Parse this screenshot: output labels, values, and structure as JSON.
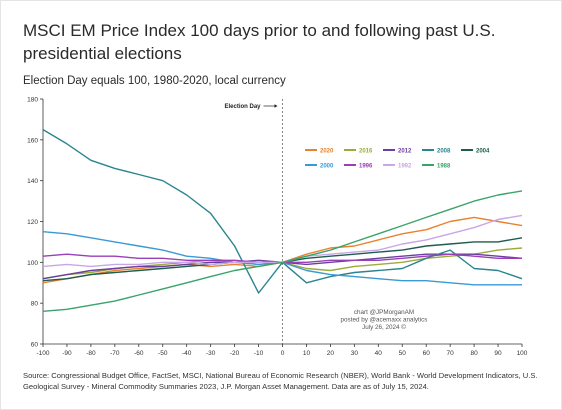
{
  "title": "MSCI EM Price Index 100 days prior to and following past U.S. presidential elections",
  "subtitle": "Election Day equals 100, 1980-2020, local currency",
  "source": "Source: Congressional Budget Office, FactSet, MSCI, National Bureau of Economic Research (NBER), World Bank - World Development Indicators, U.S. Geological Survey - Mineral Commodity Summaries 2023, J.P. Morgan Asset Management. Data are as of July 15, 2024.",
  "annotation": {
    "election_day": "Election Day",
    "credit_lines": [
      "chart @JPMorganAM",
      "posted by @acemaxx analytics",
      "July 26, 2024 ©"
    ]
  },
  "chart_data": {
    "type": "line",
    "title": "MSCI EM Price Index 100 days prior to and following past U.S. presidential elections",
    "subtitle": "Election Day equals 100, 1980-2020, local currency",
    "xlabel": "",
    "ylabel": "",
    "xlim": [
      -100,
      100
    ],
    "ylim": [
      60,
      180
    ],
    "x_ticks": [
      -100,
      -90,
      -80,
      -70,
      -60,
      -50,
      -40,
      -30,
      -20,
      -10,
      0,
      10,
      20,
      30,
      40,
      50,
      60,
      70,
      80,
      90,
      100
    ],
    "y_ticks": [
      60,
      80,
      100,
      120,
      140,
      160,
      180
    ],
    "grid": false,
    "legend_position": "top-right",
    "series": [
      {
        "name": "2020",
        "color": "#e8822e",
        "x": [
          -100,
          -90,
          -80,
          -70,
          -60,
          -50,
          -40,
          -30,
          -20,
          -10,
          0,
          10,
          20,
          30,
          40,
          50,
          60,
          70,
          80,
          90,
          100
        ],
        "values": [
          90,
          92,
          94,
          96,
          97,
          98,
          99,
          98,
          99,
          98,
          100,
          104,
          107,
          108,
          111,
          114,
          116,
          120,
          122,
          120,
          118
        ]
      },
      {
        "name": "2016",
        "color": "#9aac3c",
        "x": [
          -100,
          -90,
          -80,
          -70,
          -60,
          -50,
          -40,
          -30,
          -20,
          -10,
          0,
          10,
          20,
          30,
          40,
          50,
          60,
          70,
          80,
          90,
          100
        ],
        "values": [
          92,
          94,
          95,
          97,
          98,
          99,
          100,
          101,
          100,
          99,
          100,
          97,
          96,
          98,
          99,
          100,
          102,
          103,
          104,
          106,
          107
        ]
      },
      {
        "name": "2012",
        "color": "#6a3fa0",
        "x": [
          -100,
          -90,
          -80,
          -70,
          -60,
          -50,
          -40,
          -30,
          -20,
          -10,
          0,
          10,
          20,
          30,
          40,
          50,
          60,
          70,
          80,
          90,
          100
        ],
        "values": [
          92,
          94,
          96,
          97,
          98,
          98,
          99,
          100,
          100,
          101,
          100,
          99,
          100,
          101,
          102,
          103,
          104,
          104,
          104,
          103,
          102
        ]
      },
      {
        "name": "2008",
        "color": "#2b8590",
        "x": [
          -100,
          -90,
          -80,
          -70,
          -60,
          -50,
          -40,
          -30,
          -20,
          -10,
          0,
          10,
          20,
          30,
          40,
          50,
          60,
          70,
          80,
          90,
          100
        ],
        "values": [
          165,
          158,
          150,
          146,
          143,
          140,
          133,
          124,
          108,
          85,
          100,
          90,
          93,
          95,
          96,
          97,
          102,
          106,
          97,
          96,
          92
        ]
      },
      {
        "name": "2004",
        "color": "#1e5c4e",
        "x": [
          -100,
          -90,
          -80,
          -70,
          -60,
          -50,
          -40,
          -30,
          -20,
          -10,
          0,
          10,
          20,
          30,
          40,
          50,
          60,
          70,
          80,
          90,
          100
        ],
        "values": [
          91,
          92,
          94,
          95,
          96,
          97,
          98,
          99,
          100,
          100,
          100,
          102,
          103,
          104,
          105,
          106,
          108,
          109,
          110,
          110,
          112
        ]
      },
      {
        "name": "2000",
        "color": "#3a9ad4",
        "x": [
          -100,
          -90,
          -80,
          -70,
          -60,
          -50,
          -40,
          -30,
          -20,
          -10,
          0,
          10,
          20,
          30,
          40,
          50,
          60,
          70,
          80,
          90,
          100
        ],
        "values": [
          115,
          114,
          112,
          110,
          108,
          106,
          103,
          102,
          100,
          99,
          100,
          96,
          94,
          93,
          92,
          91,
          91,
          90,
          89,
          89,
          89
        ]
      },
      {
        "name": "1996",
        "color": "#9a3fb8",
        "x": [
          -100,
          -90,
          -80,
          -70,
          -60,
          -50,
          -40,
          -30,
          -20,
          -10,
          0,
          10,
          20,
          30,
          40,
          50,
          60,
          70,
          80,
          90,
          100
        ],
        "values": [
          103,
          104,
          103,
          103,
          102,
          102,
          101,
          101,
          101,
          100,
          100,
          100,
          101,
          101,
          101,
          102,
          103,
          104,
          103,
          102,
          102
        ]
      },
      {
        "name": "1992",
        "color": "#c9a6e8",
        "x": [
          -100,
          -90,
          -80,
          -70,
          -60,
          -50,
          -40,
          -30,
          -20,
          -10,
          0,
          10,
          20,
          30,
          40,
          50,
          60,
          70,
          80,
          90,
          100
        ],
        "values": [
          98,
          99,
          98,
          99,
          99,
          100,
          100,
          99,
          100,
          100,
          100,
          103,
          104,
          105,
          106,
          109,
          111,
          114,
          117,
          121,
          123
        ]
      },
      {
        "name": "1988",
        "color": "#3aa36a",
        "x": [
          -100,
          -90,
          -80,
          -70,
          -60,
          -50,
          -40,
          -30,
          -20,
          -10,
          0,
          10,
          20,
          30,
          40,
          50,
          60,
          70,
          80,
          90,
          100
        ],
        "values": [
          76,
          77,
          79,
          81,
          84,
          87,
          90,
          93,
          96,
          98,
          100,
          103,
          106,
          110,
          114,
          118,
          122,
          126,
          130,
          133,
          135
        ]
      }
    ]
  }
}
